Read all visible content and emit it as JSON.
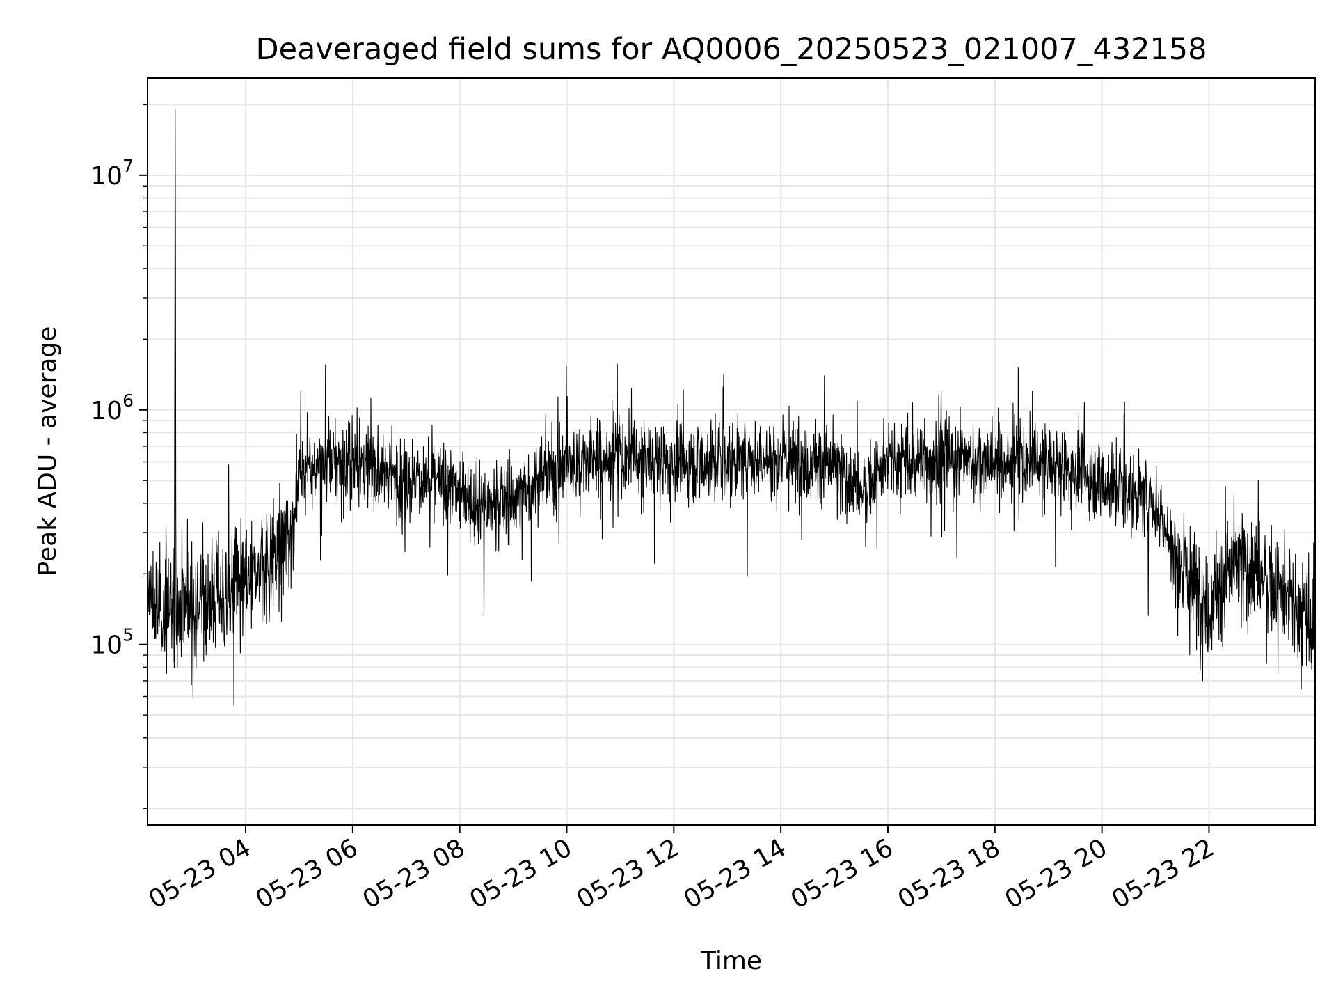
{
  "chart_data": {
    "type": "line",
    "title": "Deaveraged field sums for AQ0006_20250523_021007_432158",
    "xlabel": "Time",
    "ylabel": "Peak ADU - average",
    "xlim": [
      "2025-05-23 02:10",
      "2025-05-23 23:59"
    ],
    "x_ticks": [
      "05-23 04",
      "05-23 06",
      "05-23 08",
      "05-23 10",
      "05-23 12",
      "05-23 14",
      "05-23 16",
      "05-23 18",
      "05-23 20",
      "05-23 22"
    ],
    "yscale": "log",
    "ylim": [
      17000,
      26000000
    ],
    "y_ticks": [
      {
        "base": "10",
        "exp": "5",
        "value": 100000
      },
      {
        "base": "10",
        "exp": "6",
        "value": 1000000
      },
      {
        "base": "10",
        "exp": "7",
        "value": 10000000
      }
    ],
    "grid": true,
    "legend": "none",
    "line_color": "#000000",
    "series": [
      {
        "x": [
          "2025-05-23 02:10",
          "2025-05-23 02:30",
          "2025-05-23 02:40",
          "2025-05-23 02:41",
          "2025-05-23 02:42",
          "2025-05-23 02:50",
          "2025-05-23 03:00",
          "2025-05-23 03:30",
          "2025-05-23 04:00",
          "2025-05-23 04:30",
          "2025-05-23 04:50",
          "2025-05-23 05:00",
          "2025-05-23 05:30",
          "2025-05-23 06:00",
          "2025-05-23 06:30",
          "2025-05-23 07:00",
          "2025-05-23 07:30",
          "2025-05-23 08:00",
          "2025-05-23 08:30",
          "2025-05-23 09:00",
          "2025-05-23 09:30",
          "2025-05-23 10:00",
          "2025-05-23 11:00",
          "2025-05-23 12:00",
          "2025-05-23 13:00",
          "2025-05-23 14:00",
          "2025-05-23 15:00",
          "2025-05-23 15:30",
          "2025-05-23 16:00",
          "2025-05-23 17:00",
          "2025-05-23 18:00",
          "2025-05-23 19:00",
          "2025-05-23 19:30",
          "2025-05-23 20:00",
          "2025-05-23 20:30",
          "2025-05-23 21:00",
          "2025-05-23 21:30",
          "2025-05-23 22:00",
          "2025-05-23 22:30",
          "2025-05-23 23:00",
          "2025-05-23 23:30",
          "2025-05-23 23:59"
        ],
        "values": [
          150000,
          140000,
          140000,
          19000000,
          140000,
          150000,
          150000,
          160000,
          180000,
          230000,
          280000,
          550000,
          600000,
          600000,
          550000,
          520000,
          500000,
          450000,
          380000,
          420000,
          500000,
          600000,
          620000,
          600000,
          600000,
          620000,
          580000,
          450000,
          600000,
          620000,
          600000,
          600000,
          550000,
          500000,
          450000,
          400000,
          200000,
          150000,
          220000,
          200000,
          150000,
          120000
        ]
      }
    ]
  }
}
